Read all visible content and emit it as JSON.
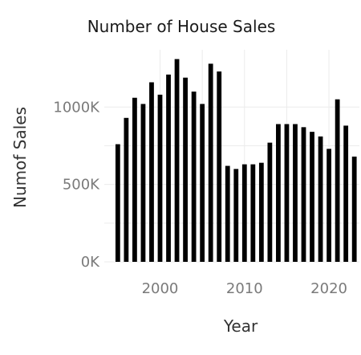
{
  "chart_data": {
    "type": "bar",
    "title": "Number of House Sales",
    "xlabel": "Year",
    "ylabel": "Numof Sales",
    "x": [
      1995,
      1996,
      1997,
      1998,
      1999,
      2000,
      2001,
      2002,
      2003,
      2004,
      2005,
      2006,
      2007,
      2008,
      2009,
      2010,
      2011,
      2012,
      2013,
      2014,
      2015,
      2016,
      2017,
      2018,
      2019,
      2020,
      2021,
      2022,
      2023
    ],
    "values": [
      760000,
      930000,
      1060000,
      1020000,
      1160000,
      1080000,
      1210000,
      1310000,
      1190000,
      1100000,
      1020000,
      1280000,
      1230000,
      620000,
      600000,
      630000,
      630000,
      640000,
      770000,
      890000,
      890000,
      890000,
      870000,
      840000,
      810000,
      730000,
      1050000,
      880000,
      680000
    ],
    "yticks": [
      0,
      500000,
      1000000
    ],
    "ytick_labels": [
      "0K",
      "500K",
      "1000K"
    ],
    "xticks": [
      2000,
      2010,
      2020
    ],
    "xtick_labels": [
      "2000",
      "2010",
      "2020"
    ],
    "xlim": [
      1993.4,
      2023.6
    ],
    "ylim": [
      0,
      1370000
    ],
    "grid": true,
    "legend": "none",
    "bar_color": "#000000"
  }
}
